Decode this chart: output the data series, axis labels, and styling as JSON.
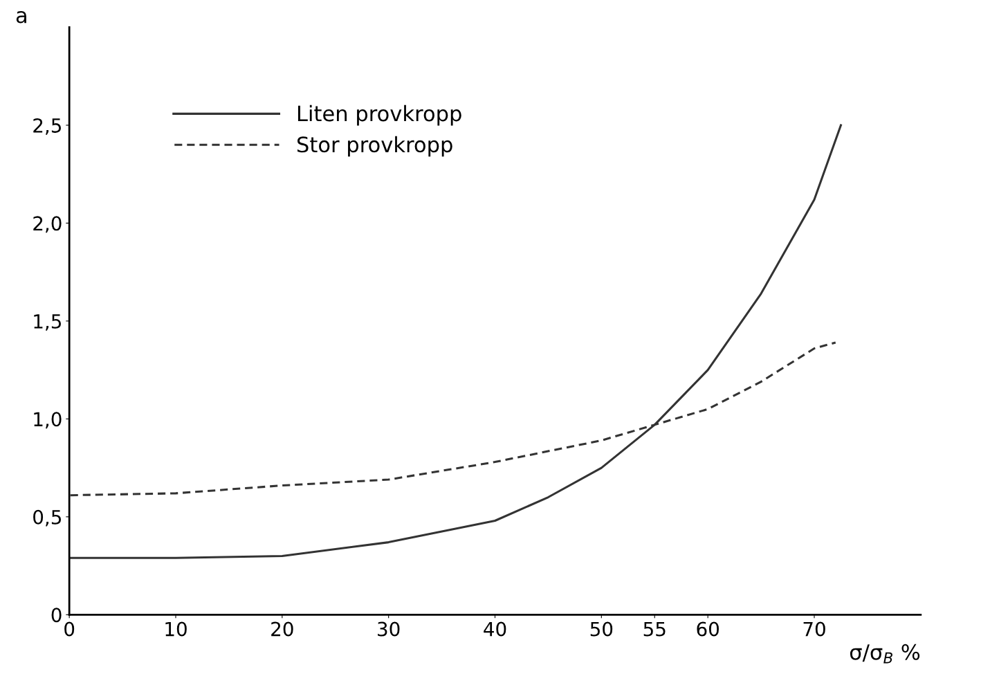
{
  "chart_data": {
    "type": "line",
    "xlabel": "σ/σ$_{B}$ %",
    "ylabel": "a",
    "xlim": [
      0,
      80
    ],
    "ylim": [
      0,
      3.0
    ],
    "xticks": [
      0,
      10,
      20,
      30,
      40,
      50,
      55,
      60,
      70
    ],
    "yticks": [
      {
        "value": 0,
        "label": "0"
      },
      {
        "value": 0.5,
        "label": "0,5"
      },
      {
        "value": 1.0,
        "label": "1,0"
      },
      {
        "value": 1.5,
        "label": "1,5"
      },
      {
        "value": 2.0,
        "label": "2,0"
      },
      {
        "value": 2.5,
        "label": "2,5"
      }
    ],
    "grid": false,
    "legend": "top left",
    "marker": "none",
    "series": [
      {
        "name": "Liten provkropp",
        "color": "#333333",
        "line_style": "solid",
        "x": [
          0,
          10,
          20,
          30,
          40,
          45,
          50,
          55,
          60,
          65,
          70,
          72.5
        ],
        "values": [
          0.29,
          0.29,
          0.3,
          0.37,
          0.48,
          0.6,
          0.75,
          0.97,
          1.25,
          1.64,
          2.12,
          2.5
        ]
      },
      {
        "name": "Stor provkropp",
        "color": "#333333",
        "line_style": "dashed",
        "x": [
          0,
          10,
          20,
          30,
          40,
          50,
          55,
          60,
          65,
          70,
          72
        ],
        "values": [
          0.61,
          0.62,
          0.66,
          0.69,
          0.78,
          0.89,
          0.97,
          1.05,
          1.19,
          1.36,
          1.39
        ]
      }
    ]
  }
}
